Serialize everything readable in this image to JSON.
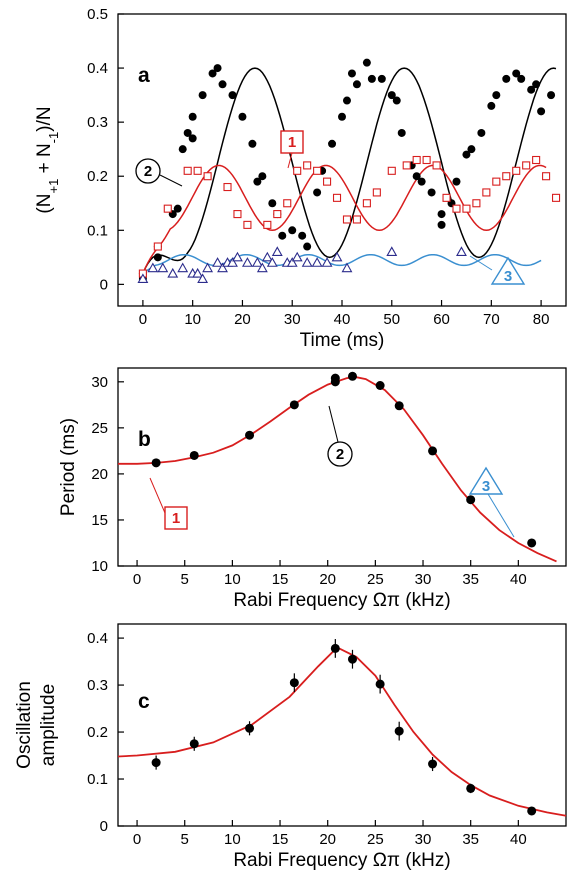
{
  "chart_data": [
    {
      "panel": "a",
      "type": "scatter",
      "xlabel": "Time (ms)",
      "ylabel": "(N+1 + N-1)/N",
      "xlim": [
        -5,
        85
      ],
      "ylim": [
        -0.04,
        0.5
      ],
      "xticks": [
        0,
        10,
        20,
        30,
        40,
        50,
        60,
        70,
        80
      ],
      "yticks": [
        0,
        0.1,
        0.2,
        0.3,
        0.4,
        0.5
      ],
      "grid": false,
      "series": [
        {
          "id": "2",
          "color": "#000000",
          "marker": "filled-circle",
          "points": [
            [
              0,
              0.02
            ],
            [
              0,
              0.01
            ],
            [
              3,
              0.07
            ],
            [
              3,
              0.05
            ],
            [
              6,
              0.13
            ],
            [
              7,
              0.14
            ],
            [
              8,
              0.25
            ],
            [
              9,
              0.28
            ],
            [
              10,
              0.31
            ],
            [
              10,
              0.27
            ],
            [
              12,
              0.35
            ],
            [
              14,
              0.39
            ],
            [
              15,
              0.4
            ],
            [
              16,
              0.37
            ],
            [
              18,
              0.35
            ],
            [
              20,
              0.31
            ],
            [
              22,
              0.26
            ],
            [
              23,
              0.19
            ],
            [
              24,
              0.2
            ],
            [
              26,
              0.15
            ],
            [
              27,
              0.13
            ],
            [
              28,
              0.09
            ],
            [
              30,
              0.1
            ],
            [
              32,
              0.09
            ],
            [
              33,
              0.07
            ],
            [
              35,
              0.17
            ],
            [
              36,
              0.21
            ],
            [
              38,
              0.26
            ],
            [
              40,
              0.31
            ],
            [
              41,
              0.34
            ],
            [
              42,
              0.39
            ],
            [
              43,
              0.37
            ],
            [
              45,
              0.41
            ],
            [
              46,
              0.38
            ],
            [
              48,
              0.38
            ],
            [
              50,
              0.35
            ],
            [
              51,
              0.34
            ],
            [
              52,
              0.28
            ],
            [
              54,
              0.22
            ],
            [
              55,
              0.2
            ],
            [
              56,
              0.19
            ],
            [
              58,
              0.17
            ],
            [
              60,
              0.11
            ],
            [
              60,
              0.13
            ],
            [
              62,
              0.15
            ],
            [
              63,
              0.19
            ],
            [
              65,
              0.24
            ],
            [
              66,
              0.25
            ],
            [
              68,
              0.28
            ],
            [
              70,
              0.33
            ],
            [
              71,
              0.35
            ],
            [
              73,
              0.38
            ],
            [
              75,
              0.39
            ],
            [
              76,
              0.38
            ],
            [
              78,
              0.36
            ],
            [
              79,
              0.37
            ],
            [
              80,
              0.32
            ],
            [
              82,
              0.35
            ]
          ]
        },
        {
          "id": "1",
          "color": "#d81e1e",
          "marker": "open-square",
          "points": [
            [
              0,
              0.02
            ],
            [
              3,
              0.07
            ],
            [
              5,
              0.14
            ],
            [
              9,
              0.21
            ],
            [
              11,
              0.21
            ],
            [
              13,
              0.2
            ],
            [
              17,
              0.18
            ],
            [
              19,
              0.13
            ],
            [
              21,
              0.11
            ],
            [
              25,
              0.11
            ],
            [
              27,
              0.13
            ],
            [
              29,
              0.15
            ],
            [
              31,
              0.21
            ],
            [
              33,
              0.22
            ],
            [
              35,
              0.21
            ],
            [
              37,
              0.19
            ],
            [
              39,
              0.16
            ],
            [
              41,
              0.12
            ],
            [
              43,
              0.12
            ],
            [
              45,
              0.15
            ],
            [
              47,
              0.17
            ],
            [
              50,
              0.21
            ],
            [
              53,
              0.22
            ],
            [
              55,
              0.23
            ],
            [
              57,
              0.23
            ],
            [
              59,
              0.22
            ],
            [
              61,
              0.16
            ],
            [
              63,
              0.14
            ],
            [
              65,
              0.14
            ],
            [
              67,
              0.15
            ],
            [
              69,
              0.17
            ],
            [
              71,
              0.19
            ],
            [
              73,
              0.2
            ],
            [
              75,
              0.21
            ],
            [
              77,
              0.22
            ],
            [
              79,
              0.23
            ],
            [
              81,
              0.2
            ],
            [
              83,
              0.16
            ]
          ]
        },
        {
          "id": "3",
          "color": "#2c2c8c",
          "marker": "open-triangle",
          "points": [
            [
              0,
              0.01
            ],
            [
              2,
              0.03
            ],
            [
              4,
              0.03
            ],
            [
              6,
              0.02
            ],
            [
              8,
              0.03
            ],
            [
              10,
              0.02
            ],
            [
              11,
              0.02
            ],
            [
              12,
              0.01
            ],
            [
              13,
              0.03
            ],
            [
              15,
              0.04
            ],
            [
              16,
              0.03
            ],
            [
              17,
              0.04
            ],
            [
              18,
              0.04
            ],
            [
              19,
              0.05
            ],
            [
              21,
              0.04
            ],
            [
              23,
              0.04
            ],
            [
              24,
              0.03
            ],
            [
              25,
              0.05
            ],
            [
              26,
              0.04
            ],
            [
              27,
              0.06
            ],
            [
              29,
              0.04
            ],
            [
              30,
              0.04
            ],
            [
              31,
              0.05
            ],
            [
              33,
              0.04
            ],
            [
              35,
              0.04
            ],
            [
              37,
              0.04
            ],
            [
              39,
              0.05
            ],
            [
              41,
              0.03
            ],
            [
              50,
              0.06
            ],
            [
              64,
              0.06
            ]
          ]
        }
      ],
      "fits": [
        {
          "id": "2",
          "color": "#000000",
          "model": "damped-sine",
          "base": 0.225,
          "amp": 0.175,
          "period_ms": 30,
          "t0": 7.5,
          "end": 83
        },
        {
          "id": "1",
          "color": "#d81e1e",
          "model": "damped-sine",
          "base": 0.16,
          "amp": 0.06,
          "period_ms": 21.5,
          "t0": 4.5,
          "end": 81
        },
        {
          "id": "3",
          "color": "#3a8fd0",
          "model": "damped-sine",
          "base": 0.045,
          "amp": 0.01,
          "period_ms": 12.5,
          "t0": 2,
          "end": 80
        }
      ],
      "labels": {
        "panel": "a",
        "callout_1": "1",
        "callout_2": "2",
        "callout_3": "3"
      }
    },
    {
      "panel": "b",
      "type": "scatter",
      "xlabel": "Rabi Frequency Ωπ (kHz)",
      "ylabel": "Period (ms)",
      "xlim": [
        -2,
        45
      ],
      "ylim": [
        10,
        31.5
      ],
      "xticks": [
        0,
        5,
        10,
        15,
        20,
        25,
        30,
        35,
        40
      ],
      "yticks": [
        10,
        15,
        20,
        25,
        30
      ],
      "grid": false,
      "points": [
        [
          2,
          21.2
        ],
        [
          6,
          22
        ],
        [
          11.8,
          24.2
        ],
        [
          16.5,
          27.5
        ],
        [
          20.8,
          30.4
        ],
        [
          20.8,
          30
        ],
        [
          22.6,
          30.6
        ],
        [
          25.5,
          29.6
        ],
        [
          27.5,
          27.4
        ],
        [
          31,
          22.5
        ],
        [
          35,
          17.2
        ],
        [
          41.4,
          12.5
        ]
      ],
      "fit_color": "#d81e1e",
      "fit": [
        [
          -2,
          21.1
        ],
        [
          0,
          21.1
        ],
        [
          2,
          21.2
        ],
        [
          4,
          21.4
        ],
        [
          6,
          21.8
        ],
        [
          8,
          22.3
        ],
        [
          10,
          23.1
        ],
        [
          12,
          24.3
        ],
        [
          14,
          25.7
        ],
        [
          16,
          27.2
        ],
        [
          18,
          28.6
        ],
        [
          20,
          29.7
        ],
        [
          22,
          30.4
        ],
        [
          23,
          30.5
        ],
        [
          24,
          30.3
        ],
        [
          26,
          29.1
        ],
        [
          28,
          27
        ],
        [
          30,
          24.2
        ],
        [
          32,
          21.1
        ],
        [
          34,
          18.2
        ],
        [
          36,
          15.8
        ],
        [
          38,
          13.9
        ],
        [
          40,
          12.5
        ],
        [
          42,
          11.4
        ],
        [
          44,
          10.5
        ]
      ],
      "labels": {
        "panel": "b",
        "callout_1": "1",
        "callout_2": "2",
        "callout_3": "3"
      }
    },
    {
      "panel": "c",
      "type": "scatter",
      "xlabel": "Rabi Frequency Ωπ (kHz)",
      "ylabel": "Oscillation amplitude",
      "xlim": [
        -2,
        45
      ],
      "ylim": [
        0,
        0.43
      ],
      "xticks": [
        0,
        5,
        10,
        15,
        20,
        25,
        30,
        35,
        40
      ],
      "yticks": [
        0,
        0.1,
        0.2,
        0.3,
        0.4
      ],
      "grid": false,
      "points": [
        [
          2,
          0.135,
          0.015
        ],
        [
          6,
          0.175,
          0.015
        ],
        [
          11.8,
          0.208,
          0.015
        ],
        [
          16.5,
          0.305,
          0.02
        ],
        [
          20.8,
          0.378,
          0.02
        ],
        [
          22.6,
          0.355,
          0.02
        ],
        [
          25.5,
          0.302,
          0.02
        ],
        [
          27.5,
          0.202,
          0.02
        ],
        [
          31,
          0.132,
          0.015
        ],
        [
          35,
          0.08,
          0.01
        ],
        [
          41.4,
          0.032,
          0.008
        ]
      ],
      "fit_color": "#d81e1e",
      "fit": [
        [
          -2,
          0.148
        ],
        [
          0,
          0.15
        ],
        [
          4,
          0.158
        ],
        [
          8,
          0.178
        ],
        [
          12,
          0.215
        ],
        [
          16,
          0.275
        ],
        [
          19,
          0.34
        ],
        [
          21,
          0.38
        ],
        [
          23,
          0.36
        ],
        [
          25,
          0.32
        ],
        [
          27,
          0.258
        ],
        [
          29,
          0.2
        ],
        [
          31,
          0.152
        ],
        [
          33,
          0.115
        ],
        [
          35,
          0.087
        ],
        [
          37,
          0.065
        ],
        [
          40,
          0.043
        ],
        [
          43,
          0.029
        ],
        [
          45,
          0.022
        ]
      ],
      "labels": {
        "panel": "c"
      }
    }
  ],
  "text": {
    "a_ylabel": "(N",
    "a_ylabel_sub1": "+1",
    "a_ylabel_mid": " + N",
    "a_ylabel_sub2": "-1",
    "a_ylabel_end": ")/N",
    "c_ylabel_line1": "Oscillation",
    "c_ylabel_line2": "amplitude"
  }
}
